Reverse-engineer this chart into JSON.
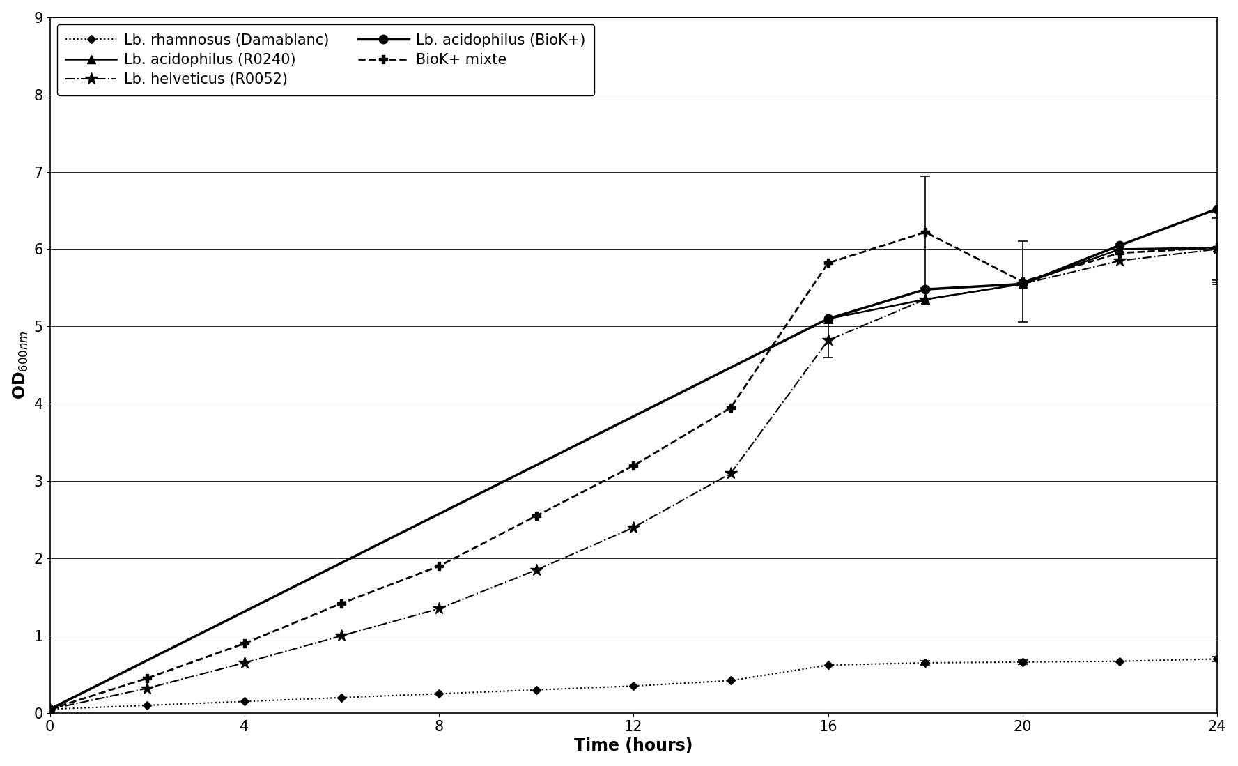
{
  "series": [
    {
      "label": "Lb. rhamnosus (Damablanc)",
      "x": [
        0,
        2,
        4,
        6,
        8,
        10,
        12,
        14,
        16,
        18,
        20,
        22,
        24
      ],
      "y": [
        0.05,
        0.1,
        0.15,
        0.2,
        0.25,
        0.3,
        0.35,
        0.42,
        0.62,
        0.65,
        0.66,
        0.67,
        0.7
      ],
      "yerr": [
        null,
        null,
        null,
        null,
        null,
        null,
        null,
        null,
        null,
        0.03,
        0.03,
        null,
        0.03
      ],
      "linestyle": "dotted",
      "linewidth": 1.5,
      "marker": "D",
      "markersize": 6,
      "color": "black",
      "markerfacecolor": "black"
    },
    {
      "label": "Lb. helveticus (R0052)",
      "x": [
        0,
        2,
        4,
        6,
        8,
        10,
        12,
        14,
        16,
        18,
        20,
        22,
        24
      ],
      "y": [
        0.05,
        0.32,
        0.65,
        1.0,
        1.35,
        1.85,
        2.4,
        3.1,
        4.82,
        5.35,
        5.55,
        5.85,
        6.0
      ],
      "yerr": [
        null,
        null,
        null,
        null,
        null,
        null,
        null,
        null,
        0.22,
        null,
        null,
        null,
        0.4
      ],
      "linestyle": "dashdot",
      "linewidth": 1.5,
      "marker": "*",
      "markersize": 13,
      "color": "black",
      "markerfacecolor": "black"
    },
    {
      "label": "BioK+ mixte",
      "x": [
        0,
        2,
        4,
        6,
        8,
        10,
        12,
        14,
        16,
        18,
        20,
        22,
        24
      ],
      "y": [
        0.05,
        0.45,
        0.9,
        1.42,
        1.9,
        2.55,
        3.2,
        3.95,
        5.82,
        6.22,
        5.58,
        5.95,
        6.02
      ],
      "yerr": [
        null,
        null,
        null,
        null,
        null,
        null,
        null,
        null,
        null,
        0.72,
        0.52,
        null,
        0.48
      ],
      "linestyle": "dashed",
      "linewidth": 2.0,
      "marker": "P",
      "markersize": 8,
      "color": "black",
      "markerfacecolor": "black"
    },
    {
      "label": "Lb. acidophilus (R0240)",
      "x": [
        0,
        16,
        18,
        20,
        22,
        24
      ],
      "y": [
        0.05,
        5.1,
        5.35,
        5.55,
        6.0,
        6.02
      ],
      "yerr": [
        null,
        null,
        null,
        null,
        null,
        0.45
      ],
      "linestyle": "solid",
      "linewidth": 1.8,
      "marker": "^",
      "markersize": 8,
      "color": "black",
      "markerfacecolor": "black"
    },
    {
      "label": "Lb. acidophilus (BioK+)",
      "x": [
        0,
        16,
        18,
        20,
        22,
        24
      ],
      "y": [
        0.05,
        5.1,
        5.48,
        5.55,
        6.05,
        6.52
      ],
      "yerr": [
        null,
        null,
        null,
        null,
        null,
        null
      ],
      "linestyle": "solid",
      "linewidth": 2.5,
      "marker": "o",
      "markersize": 9,
      "color": "black",
      "markerfacecolor": "black"
    }
  ],
  "xlabel": "Time (hours)",
  "ylabel": "OD600nm",
  "xlim": [
    0,
    24
  ],
  "ylim": [
    0,
    9
  ],
  "xticks": [
    0,
    4,
    8,
    12,
    16,
    20,
    24
  ],
  "yticks": [
    0,
    1,
    2,
    3,
    4,
    5,
    6,
    7,
    8,
    9
  ],
  "background_color": "#ffffff",
  "legend_fontsize": 15,
  "axis_fontsize": 17,
  "tick_fontsize": 15
}
